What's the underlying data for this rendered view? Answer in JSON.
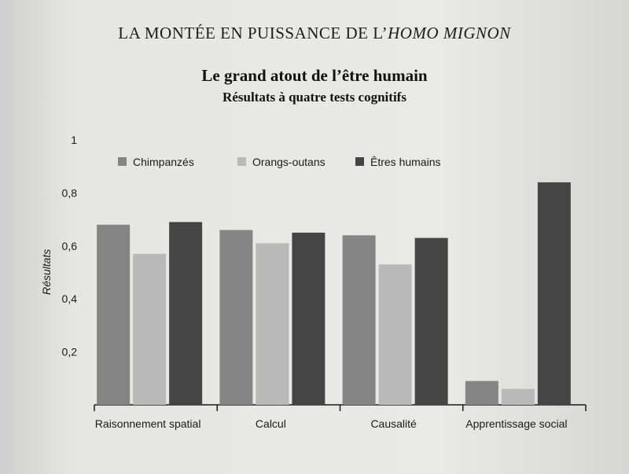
{
  "running_head": {
    "main": "LA MONTÉE EN PUISSANCE DE L’",
    "italic": "HOMO MIGNON"
  },
  "chart_data": {
    "type": "bar",
    "title": "Le grand atout de l’être humain",
    "subtitle": "Résultats à quatre tests cognitifs",
    "ylabel": "Résultats",
    "xlabel": "",
    "ylim": [
      0,
      1
    ],
    "yticks": [
      "0,2",
      "0,4",
      "0,6",
      "0,8",
      "1"
    ],
    "ytick_values": [
      0.2,
      0.4,
      0.6,
      0.8,
      1
    ],
    "categories": [
      "Raisonnement spatial",
      "Calcul",
      "Causalité",
      "Apprentissage social"
    ],
    "series": [
      {
        "name": "Chimpanzés",
        "color": "#858585",
        "values": [
          0.68,
          0.66,
          0.64,
          0.09
        ]
      },
      {
        "name": "Orangs-outans",
        "color": "#b9b9b9",
        "values": [
          0.57,
          0.61,
          0.53,
          0.06
        ]
      },
      {
        "name": "Êtres humains",
        "color": "#454545",
        "values": [
          0.69,
          0.65,
          0.63,
          0.84
        ]
      }
    ],
    "legend_position": "top-left",
    "grid": false
  }
}
